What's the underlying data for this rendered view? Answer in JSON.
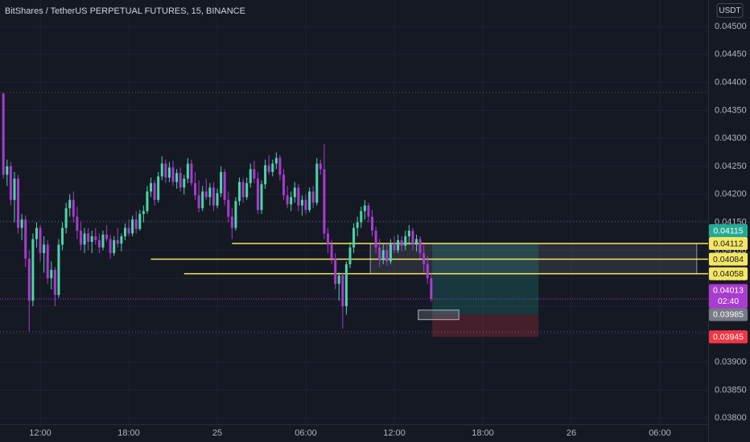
{
  "chart_data": {
    "type": "candlestick",
    "title": "BitShares / TetherUS PERPETUAL FUTURES, 15, BINANCE",
    "currency": "USDT",
    "up_color": "#4dd4a6",
    "down_color": "#a93bcf",
    "open": [
      0.0438,
      0.04235,
      0.0425,
      0.0419,
      0.04228,
      0.0414,
      0.04155,
      0.04085,
      0.0401,
      0.0412,
      0.0414,
      0.04095,
      0.0411,
      0.0405,
      0.04065,
      0.0402,
      0.0411,
      0.0414,
      0.04175,
      0.0419,
      0.0416,
      0.04135,
      0.0411,
      0.0413,
      0.04115,
      0.04125,
      0.04118,
      0.04105,
      0.04128,
      0.0412,
      0.04095,
      0.04118,
      0.04112,
      0.04125,
      0.0414,
      0.0413,
      0.04155,
      0.04138,
      0.04165,
      0.0417,
      0.04205,
      0.0422,
      0.0419,
      0.04232,
      0.04255,
      0.0423,
      0.04248,
      0.04222,
      0.04238,
      0.04212,
      0.04228,
      0.04255,
      0.0422,
      0.04198,
      0.04175,
      0.04205,
      0.04195,
      0.04212,
      0.0418,
      0.04202,
      0.0424,
      0.0419,
      0.0416,
      0.0414,
      0.04188,
      0.04222,
      0.04195,
      0.0422,
      0.04245,
      0.04228,
      0.04172,
      0.04218,
      0.04252,
      0.0424,
      0.04255,
      0.04265,
      0.04235,
      0.04198,
      0.04182,
      0.04195,
      0.04212,
      0.0418,
      0.0419,
      0.04172,
      0.04205,
      0.04185,
      0.04255,
      0.04245,
      0.0413,
      0.0411,
      0.04085,
      0.0404,
      0.04055,
      0.04,
      0.04075,
      0.04105,
      0.0414,
      0.0415,
      0.0417,
      0.0418,
      0.0416,
      0.04135,
      0.04105,
      0.04082,
      0.041,
      0.0408,
      0.04112,
      0.041,
      0.04118,
      0.04108,
      0.04125,
      0.04135,
      0.0411,
      0.0412,
      0.04095,
      0.04075,
      0.0405
    ],
    "high": [
      0.04382,
      0.04262,
      0.04258,
      0.0424,
      0.04235,
      0.04165,
      0.04162,
      0.041,
      0.0413,
      0.0415,
      0.04145,
      0.04125,
      0.04118,
      0.0408,
      0.0407,
      0.0412,
      0.0415,
      0.04185,
      0.042,
      0.04205,
      0.04178,
      0.0415,
      0.0414,
      0.0414,
      0.04135,
      0.0414,
      0.0413,
      0.04135,
      0.04145,
      0.04128,
      0.04125,
      0.0414,
      0.0413,
      0.04148,
      0.04155,
      0.04162,
      0.0417,
      0.04172,
      0.0418,
      0.04215,
      0.0423,
      0.04225,
      0.0424,
      0.04268,
      0.04262,
      0.04258,
      0.0426,
      0.04245,
      0.04248,
      0.04235,
      0.04265,
      0.04262,
      0.0424,
      0.04225,
      0.04215,
      0.04228,
      0.0422,
      0.04222,
      0.0421,
      0.0425,
      0.04245,
      0.04205,
      0.04175,
      0.04195,
      0.0423,
      0.04228,
      0.0423,
      0.04255,
      0.0426,
      0.0424,
      0.04225,
      0.04262,
      0.0427,
      0.04262,
      0.04275,
      0.0427,
      0.04245,
      0.04215,
      0.04205,
      0.04222,
      0.04218,
      0.04198,
      0.042,
      0.04212,
      0.04215,
      0.04265,
      0.04262,
      0.0429,
      0.0414,
      0.04118,
      0.04095,
      0.0406,
      0.0406,
      0.0408,
      0.04115,
      0.04148,
      0.0416,
      0.04178,
      0.0419,
      0.04185,
      0.04172,
      0.04142,
      0.0412,
      0.0411,
      0.04112,
      0.0412,
      0.04125,
      0.04128,
      0.04125,
      0.04135,
      0.04145,
      0.0414,
      0.04128,
      0.04125,
      0.0411,
      0.0409,
      0.04058
    ],
    "low": [
      0.04228,
      0.04215,
      0.0418,
      0.0415,
      0.0413,
      0.04118,
      0.0407,
      0.03955,
      0.04,
      0.04105,
      0.0408,
      0.0406,
      0.0404,
      0.0403,
      0.04,
      0.04015,
      0.041,
      0.0413,
      0.0416,
      0.0415,
      0.0412,
      0.041,
      0.04095,
      0.041,
      0.04095,
      0.0411,
      0.04095,
      0.041,
      0.04115,
      0.04085,
      0.0409,
      0.04105,
      0.04098,
      0.04118,
      0.04125,
      0.04125,
      0.0413,
      0.04135,
      0.0415,
      0.04165,
      0.04195,
      0.0418,
      0.04185,
      0.04225,
      0.0422,
      0.04222,
      0.04215,
      0.0421,
      0.04205,
      0.042,
      0.0422,
      0.04215,
      0.0419,
      0.04168,
      0.0417,
      0.0419,
      0.0418,
      0.0417,
      0.04175,
      0.04195,
      0.0418,
      0.0415,
      0.0412,
      0.04135,
      0.0418,
      0.04185,
      0.0419,
      0.04212,
      0.0422,
      0.04165,
      0.04165,
      0.0421,
      0.04235,
      0.04232,
      0.04245,
      0.04225,
      0.0419,
      0.04175,
      0.0417,
      0.04185,
      0.0417,
      0.04162,
      0.04165,
      0.04168,
      0.04175,
      0.0418,
      0.04235,
      0.0412,
      0.04095,
      0.04075,
      0.0403,
      0.0401,
      0.0396,
      0.03985,
      0.04068,
      0.04095,
      0.04125,
      0.0414,
      0.04155,
      0.0415,
      0.04125,
      0.04095,
      0.0407,
      0.04075,
      0.04072,
      0.04075,
      0.04095,
      0.04095,
      0.04098,
      0.041,
      0.0411,
      0.041,
      0.04098,
      0.04085,
      0.0406,
      0.0404,
      0.04008
    ],
    "close": [
      0.04235,
      0.0425,
      0.0419,
      0.04228,
      0.0414,
      0.04155,
      0.04085,
      0.0401,
      0.0412,
      0.0414,
      0.04095,
      0.0411,
      0.0405,
      0.04065,
      0.0402,
      0.0411,
      0.0414,
      0.04175,
      0.0419,
      0.0416,
      0.04135,
      0.0411,
      0.0413,
      0.04115,
      0.04125,
      0.04118,
      0.04105,
      0.04128,
      0.0412,
      0.04095,
      0.04118,
      0.04112,
      0.04125,
      0.0414,
      0.0413,
      0.04155,
      0.04138,
      0.04165,
      0.0417,
      0.04205,
      0.0422,
      0.0419,
      0.04232,
      0.04255,
      0.0423,
      0.04248,
      0.04222,
      0.04238,
      0.04212,
      0.04228,
      0.04255,
      0.0422,
      0.04198,
      0.04175,
      0.04205,
      0.04195,
      0.04212,
      0.0418,
      0.04202,
      0.0424,
      0.0419,
      0.0416,
      0.0414,
      0.04188,
      0.04222,
      0.04195,
      0.0422,
      0.04245,
      0.04228,
      0.04172,
      0.04218,
      0.04252,
      0.0424,
      0.04255,
      0.04265,
      0.04235,
      0.04198,
      0.04182,
      0.04195,
      0.04212,
      0.0418,
      0.0419,
      0.04172,
      0.04205,
      0.04185,
      0.04255,
      0.04245,
      0.0413,
      0.0411,
      0.04085,
      0.0404,
      0.04055,
      0.04,
      0.04075,
      0.04105,
      0.0414,
      0.0415,
      0.0417,
      0.0418,
      0.0416,
      0.04135,
      0.04105,
      0.04082,
      0.041,
      0.0408,
      0.04112,
      0.041,
      0.04118,
      0.04108,
      0.04125,
      0.04135,
      0.0411,
      0.0412,
      0.04095,
      0.04075,
      0.0405,
      0.04013
    ],
    "xlim": [
      -0.92,
      191.1
    ],
    "xticks": [
      {
        "value": 10,
        "label": "12:00"
      },
      {
        "value": 34,
        "label": "18:00"
      },
      {
        "value": 58,
        "label": "25"
      },
      {
        "value": 82,
        "label": "06:00"
      },
      {
        "value": 106,
        "label": "12:00"
      },
      {
        "value": 130,
        "label": "18:00"
      },
      {
        "value": 154,
        "label": "26"
      },
      {
        "value": 178,
        "label": "06:00"
      }
    ],
    "ylim": [
      0.037888,
      0.045474
    ],
    "yticks": [
      {
        "value": 0.045,
        "label": "0.04500"
      },
      {
        "value": 0.0445,
        "label": "0.04450"
      },
      {
        "value": 0.044,
        "label": "0.04400"
      },
      {
        "value": 0.0435,
        "label": "0.04350"
      },
      {
        "value": 0.043,
        "label": "0.04300"
      },
      {
        "value": 0.0425,
        "label": "0.04250"
      },
      {
        "value": 0.042,
        "label": "0.04200"
      },
      {
        "value": 0.0415,
        "label": "0.04150"
      },
      {
        "value": 0.041,
        "label": "0.04100"
      },
      {
        "value": 0.0405,
        "label": "0.04050"
      },
      {
        "value": 0.04,
        "label": "0.04000"
      },
      {
        "value": 0.0395,
        "label": "0.03950"
      },
      {
        "value": 0.039,
        "label": "0.03900"
      },
      {
        "value": 0.0385,
        "label": "0.03850"
      },
      {
        "value": 0.038,
        "label": "0.03800"
      }
    ],
    "grid": true,
    "dotted_lines": [
      0.04382,
      0.04152,
      0.03954
    ],
    "horizontal_lines": [
      {
        "value": 0.04112,
        "start": 62,
        "color": "#f5e663"
      },
      {
        "value": 0.04084,
        "start": 40,
        "color": "#f5e663"
      },
      {
        "value": 0.04058,
        "start": 49,
        "color": "#f5e663"
      }
    ],
    "zone": {
      "start": 99.5,
      "end": 188,
      "top": 0.04112,
      "bottom": 0.04058
    },
    "long_position": {
      "start": 116.3,
      "end": 145.1,
      "entry": 0.03985,
      "target": 0.04112,
      "stop": 0.03945
    },
    "marker": {
      "start": 112.5,
      "end": 123.5,
      "top": 0.03993,
      "bottom": 0.03976
    },
    "last_price": {
      "value": 0.04013,
      "color": "#a93bcf",
      "countdown": "02:40"
    },
    "price_labels": [
      {
        "value": 0.04115,
        "color": "#22ab94",
        "text_color": "#ffffff"
      },
      {
        "value": 0.04112,
        "color": "#f5e663",
        "text_color": "#131722"
      },
      {
        "value": 0.04084,
        "color": "#f5e663",
        "text_color": "#131722"
      },
      {
        "value": 0.04058,
        "color": "#f5e663",
        "text_color": "#131722"
      },
      {
        "value": 0.03985,
        "color": "#787b86",
        "text_color": "#ffffff"
      },
      {
        "value": 0.03945,
        "color": "#f23645",
        "text_color": "#ffffff"
      }
    ]
  }
}
